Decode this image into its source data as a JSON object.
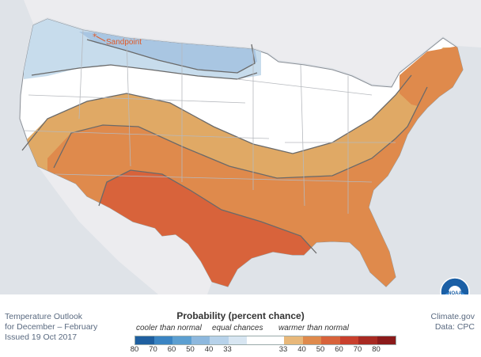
{
  "map": {
    "annotation": "Sandpoint",
    "colors": {
      "background": "#dfe3e8",
      "land": "#ffffff",
      "cool_light": "#c7dcec",
      "cool_medium": "#a9c6e2",
      "warm_33": "#e0a965",
      "warm_40": "#df8a4c",
      "warm_50": "#d8633b",
      "annotation": "#e05a28"
    }
  },
  "title_block": {
    "line1": "Temperature Outlook",
    "line2": "for December – February",
    "line3": "Issued 19 Oct 2017"
  },
  "credit": {
    "line1": "Climate.gov",
    "line2": "Data: CPC"
  },
  "legend": {
    "title": "Probability (percent chance)",
    "cooler_label": "cooler than normal",
    "equal_label": "equal chances",
    "warmer_label": "warmer than normal",
    "ticks": [
      "80",
      "70",
      "60",
      "50",
      "40",
      "33",
      "",
      "33",
      "40",
      "50",
      "60",
      "70",
      "80"
    ],
    "colors": [
      "#1f5fa0",
      "#3a84c3",
      "#5c9fd1",
      "#8db8de",
      "#b7d2ea",
      "#d8e6f2",
      "#ffffff",
      "#ffffff",
      "#e8b87a",
      "#df8a4c",
      "#d8633b",
      "#c9402d",
      "#a82a22",
      "#8b1a1a"
    ]
  }
}
